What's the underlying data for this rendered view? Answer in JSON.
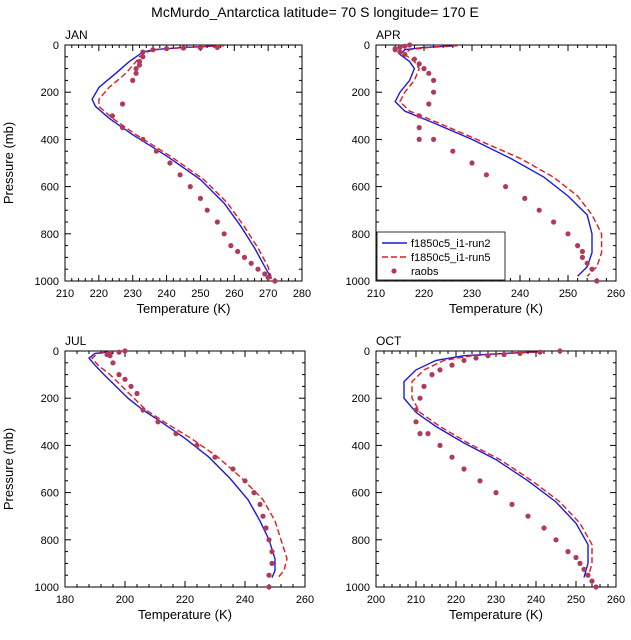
{
  "suptitle": "McMurdo_Antarctica  latitude= 70 S longitude= 170 E",
  "legend": {
    "run2": "f1850c5_i1-run2",
    "run5": "f1850c5_i1-run5",
    "obs": "raobs"
  },
  "colors": {
    "run2": "#1a1adf",
    "run5": "#e41a1a",
    "obs": "#b03a5a"
  },
  "chart_data": [
    {
      "type": "line",
      "title": "JAN",
      "xlabel": "Temperature (K)",
      "ylabel": "Pressure (mb)",
      "xlim": [
        210,
        280
      ],
      "xticks": [
        210,
        220,
        230,
        240,
        250,
        260,
        270,
        280
      ],
      "ylim": [
        1000,
        0
      ],
      "yticks": [
        0,
        200,
        400,
        600,
        800,
        1000
      ],
      "grid": false,
      "series": [
        {
          "name": "f1850c5_i1-run2",
          "style": "solid",
          "x": [
            257,
            245,
            236,
            233,
            231,
            229,
            225,
            220,
            218,
            219,
            223,
            230,
            240,
            250,
            257,
            262,
            266,
            269,
            271
          ],
          "y": [
            3,
            10,
            20,
            30,
            50,
            70,
            120,
            180,
            230,
            260,
            310,
            380,
            470,
            570,
            670,
            770,
            860,
            940,
            990
          ]
        },
        {
          "name": "f1850c5_i1-run5",
          "style": "dashed",
          "x": [
            257,
            246,
            237,
            234,
            232,
            231,
            228,
            223,
            220,
            220,
            224,
            231,
            241,
            251,
            258,
            263,
            267,
            270,
            271
          ],
          "y": [
            3,
            10,
            20,
            30,
            50,
            70,
            120,
            180,
            230,
            260,
            310,
            380,
            470,
            570,
            670,
            770,
            860,
            940,
            990
          ]
        },
        {
          "name": "raobs",
          "style": "markers",
          "x": [
            255,
            250,
            245,
            240,
            236,
            233,
            233,
            232,
            232,
            231,
            231,
            230,
            227,
            224,
            227,
            233,
            237,
            241,
            244,
            247,
            250,
            252,
            255,
            257,
            259,
            261,
            263,
            265,
            267,
            269,
            270,
            272
          ],
          "y": [
            10,
            12,
            13,
            15,
            20,
            30,
            50,
            70,
            85,
            100,
            120,
            150,
            250,
            300,
            350,
            400,
            450,
            500,
            550,
            600,
            650,
            700,
            750,
            800,
            850,
            875,
            900,
            925,
            950,
            970,
            985,
            1000
          ]
        }
      ]
    },
    {
      "type": "line",
      "title": "APR",
      "xlabel": "Temperature (K)",
      "ylabel": "",
      "xlim": [
        210,
        260
      ],
      "xticks": [
        210,
        220,
        230,
        240,
        250,
        260
      ],
      "ylim": [
        1000,
        0
      ],
      "yticks": [
        0,
        200,
        400,
        600,
        800,
        1000
      ],
      "grid": false,
      "legend_position": "bottom-left",
      "series": [
        {
          "name": "f1850c5_i1-run2",
          "style": "solid",
          "x": [
            227,
            220,
            216,
            215,
            217,
            218,
            217,
            215,
            214,
            216,
            222,
            230,
            238,
            245,
            250,
            254,
            255,
            255,
            254,
            252
          ],
          "y": [
            3,
            10,
            20,
            40,
            70,
            100,
            150,
            200,
            240,
            280,
            330,
            400,
            480,
            560,
            640,
            720,
            800,
            880,
            940,
            980
          ]
        },
        {
          "name": "f1850c5_i1-run5",
          "style": "dashed",
          "x": [
            227,
            221,
            217,
            216,
            218,
            219,
            218,
            216,
            215,
            217,
            223,
            231,
            240,
            247,
            252,
            255,
            257,
            257,
            256,
            254
          ],
          "y": [
            3,
            10,
            20,
            40,
            70,
            100,
            150,
            200,
            240,
            280,
            330,
            400,
            480,
            560,
            640,
            720,
            800,
            880,
            940,
            980
          ]
        },
        {
          "name": "raobs",
          "style": "markers",
          "x": [
            217,
            216,
            215,
            214,
            214,
            215,
            216,
            218,
            219,
            220,
            221,
            222,
            222,
            221,
            219,
            219,
            219,
            222,
            226,
            230,
            233,
            237,
            241,
            244,
            247,
            250,
            252,
            253,
            253,
            254,
            255,
            256
          ],
          "y": [
            0,
            5,
            10,
            15,
            20,
            30,
            40,
            60,
            80,
            100,
            120,
            150,
            200,
            250,
            300,
            350,
            400,
            400,
            450,
            500,
            550,
            600,
            650,
            700,
            750,
            800,
            850,
            875,
            900,
            925,
            950,
            1000
          ]
        }
      ]
    },
    {
      "type": "line",
      "title": "JUL",
      "xlabel": "Temperature (K)",
      "ylabel": "Pressure (mb)",
      "xlim": [
        180,
        260
      ],
      "xticks": [
        180,
        200,
        220,
        240,
        260
      ],
      "ylim": [
        1000,
        0
      ],
      "yticks": [
        0,
        200,
        400,
        600,
        800,
        1000
      ],
      "grid": false,
      "series": [
        {
          "name": "f1850c5_i1-run2",
          "style": "solid",
          "x": [
            195,
            190,
            188,
            190,
            193,
            197,
            201,
            206,
            212,
            220,
            228,
            235,
            241,
            245,
            248,
            250,
            250,
            249
          ],
          "y": [
            3,
            10,
            30,
            60,
            100,
            150,
            200,
            250,
            300,
            370,
            450,
            540,
            630,
            720,
            800,
            880,
            930,
            960
          ]
        },
        {
          "name": "f1850c5_i1-run5",
          "style": "dashed",
          "x": [
            196,
            191,
            189,
            191,
            195,
            199,
            203,
            207,
            213,
            222,
            231,
            239,
            246,
            250,
            252,
            254,
            253,
            251
          ],
          "y": [
            3,
            10,
            30,
            60,
            100,
            150,
            200,
            250,
            300,
            370,
            450,
            540,
            630,
            720,
            800,
            880,
            930,
            960
          ]
        },
        {
          "name": "raobs",
          "style": "markers",
          "x": [
            200,
            198,
            195,
            194,
            195,
            196,
            198,
            200,
            202,
            204,
            206,
            211,
            217,
            224,
            230,
            236,
            240,
            243,
            245,
            246,
            247,
            248,
            249,
            249,
            248,
            248
          ],
          "y": [
            0,
            5,
            10,
            15,
            20,
            50,
            100,
            120,
            150,
            180,
            250,
            300,
            350,
            400,
            450,
            500,
            550,
            600,
            650,
            700,
            750,
            800,
            850,
            900,
            950,
            1000
          ]
        }
      ]
    },
    {
      "type": "line",
      "title": "OCT",
      "xlabel": "Temperature (K)",
      "ylabel": "",
      "xlim": [
        200,
        260
      ],
      "xticks": [
        200,
        210,
        220,
        230,
        240,
        250,
        260
      ],
      "ylim": [
        1000,
        0
      ],
      "yticks": [
        0,
        200,
        400,
        600,
        800,
        1000
      ],
      "grid": false,
      "series": [
        {
          "name": "f1850c5_i1-run2",
          "style": "solid",
          "x": [
            242,
            232,
            222,
            215,
            210,
            207,
            207,
            210,
            215,
            222,
            230,
            238,
            245,
            250,
            253,
            253,
            252
          ],
          "y": [
            3,
            10,
            20,
            40,
            80,
            130,
            200,
            260,
            320,
            390,
            460,
            550,
            640,
            730,
            820,
            900,
            960
          ]
        },
        {
          "name": "f1850c5_i1-run5",
          "style": "dashed",
          "x": [
            242,
            233,
            224,
            217,
            212,
            209,
            209,
            211,
            216,
            223,
            231,
            239,
            246,
            251,
            254,
            254,
            253
          ],
          "y": [
            3,
            10,
            20,
            40,
            80,
            130,
            200,
            260,
            320,
            390,
            460,
            550,
            640,
            730,
            820,
            900,
            960
          ]
        },
        {
          "name": "raobs",
          "style": "markers",
          "x": [
            246,
            241,
            236,
            232,
            228,
            225,
            222,
            219,
            216,
            214,
            212,
            211,
            210,
            210,
            211,
            213,
            216,
            219,
            222,
            226,
            230,
            234,
            238,
            242,
            245,
            248,
            250,
            251,
            252,
            253,
            254,
            255
          ],
          "y": [
            0,
            5,
            10,
            15,
            20,
            30,
            40,
            60,
            80,
            100,
            150,
            200,
            250,
            300,
            350,
            350,
            400,
            450,
            500,
            550,
            600,
            650,
            700,
            750,
            800,
            850,
            875,
            900,
            925,
            950,
            975,
            1000
          ]
        }
      ]
    }
  ]
}
